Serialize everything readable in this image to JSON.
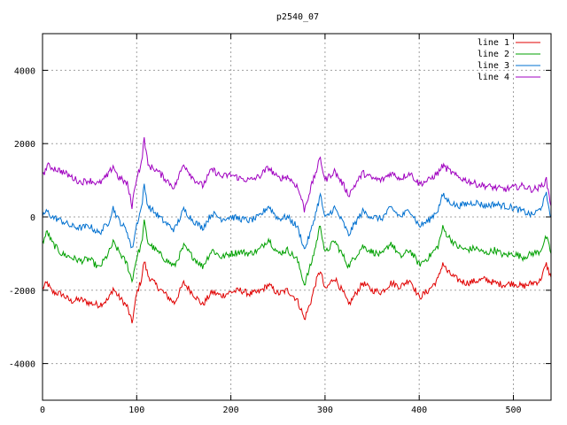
{
  "chart_data": {
    "type": "line",
    "title": "p2540_07",
    "xlim": [
      0,
      540
    ],
    "ylim": [
      -5000,
      5000
    ],
    "xticks": [
      0,
      100,
      200,
      300,
      400,
      500
    ],
    "yticks": [
      -4000,
      -2000,
      0,
      2000,
      4000
    ],
    "grid": true,
    "legend_position": "top-right",
    "series": [
      {
        "name": "line 1",
        "color": "#e00000",
        "keypoints": [
          [
            0,
            -1950
          ],
          [
            5,
            -1800
          ],
          [
            10,
            -2050
          ],
          [
            20,
            -2100
          ],
          [
            30,
            -2300
          ],
          [
            40,
            -2250
          ],
          [
            50,
            -2350
          ],
          [
            60,
            -2400
          ],
          [
            70,
            -2250
          ],
          [
            75,
            -1950
          ],
          [
            80,
            -2150
          ],
          [
            90,
            -2450
          ],
          [
            95,
            -2900
          ],
          [
            100,
            -2100
          ],
          [
            105,
            -1700
          ],
          [
            108,
            -1200
          ],
          [
            112,
            -1600
          ],
          [
            120,
            -1850
          ],
          [
            130,
            -2100
          ],
          [
            140,
            -2350
          ],
          [
            150,
            -1800
          ],
          [
            160,
            -2100
          ],
          [
            170,
            -2400
          ],
          [
            180,
            -2050
          ],
          [
            190,
            -2150
          ],
          [
            200,
            -2050
          ],
          [
            210,
            -2000
          ],
          [
            220,
            -2100
          ],
          [
            230,
            -2050
          ],
          [
            240,
            -1850
          ],
          [
            250,
            -2100
          ],
          [
            260,
            -2000
          ],
          [
            270,
            -2250
          ],
          [
            275,
            -2550
          ],
          [
            278,
            -2800
          ],
          [
            285,
            -2300
          ],
          [
            290,
            -1800
          ],
          [
            295,
            -1450
          ],
          [
            300,
            -2000
          ],
          [
            310,
            -1650
          ],
          [
            320,
            -2100
          ],
          [
            325,
            -2400
          ],
          [
            330,
            -2200
          ],
          [
            340,
            -1800
          ],
          [
            350,
            -2000
          ],
          [
            360,
            -2050
          ],
          [
            370,
            -1800
          ],
          [
            380,
            -1900
          ],
          [
            390,
            -1700
          ],
          [
            400,
            -2200
          ],
          [
            410,
            -2000
          ],
          [
            420,
            -1700
          ],
          [
            425,
            -1250
          ],
          [
            430,
            -1500
          ],
          [
            440,
            -1700
          ],
          [
            450,
            -1800
          ],
          [
            460,
            -1750
          ],
          [
            470,
            -1700
          ],
          [
            480,
            -1800
          ],
          [
            490,
            -1850
          ],
          [
            500,
            -1800
          ],
          [
            510,
            -1900
          ],
          [
            520,
            -1800
          ],
          [
            528,
            -1750
          ],
          [
            535,
            -1300
          ],
          [
            540,
            -1650
          ]
        ]
      },
      {
        "name": "line 2",
        "color": "#00a000",
        "keypoints": [
          [
            0,
            -700
          ],
          [
            5,
            -400
          ],
          [
            10,
            -700
          ],
          [
            20,
            -1000
          ],
          [
            30,
            -1100
          ],
          [
            40,
            -1200
          ],
          [
            50,
            -1150
          ],
          [
            60,
            -1400
          ],
          [
            70,
            -1000
          ],
          [
            75,
            -700
          ],
          [
            80,
            -900
          ],
          [
            90,
            -1300
          ],
          [
            95,
            -1750
          ],
          [
            100,
            -1100
          ],
          [
            105,
            -750
          ],
          [
            108,
            -150
          ],
          [
            112,
            -700
          ],
          [
            120,
            -900
          ],
          [
            130,
            -1150
          ],
          [
            140,
            -1350
          ],
          [
            150,
            -800
          ],
          [
            160,
            -1100
          ],
          [
            170,
            -1350
          ],
          [
            180,
            -900
          ],
          [
            190,
            -1100
          ],
          [
            200,
            -1000
          ],
          [
            210,
            -950
          ],
          [
            220,
            -1000
          ],
          [
            230,
            -900
          ],
          [
            240,
            -600
          ],
          [
            250,
            -1000
          ],
          [
            260,
            -900
          ],
          [
            270,
            -1150
          ],
          [
            275,
            -1550
          ],
          [
            278,
            -1850
          ],
          [
            285,
            -1300
          ],
          [
            290,
            -800
          ],
          [
            295,
            -200
          ],
          [
            300,
            -1000
          ],
          [
            310,
            -650
          ],
          [
            320,
            -1100
          ],
          [
            325,
            -1350
          ],
          [
            330,
            -1150
          ],
          [
            340,
            -800
          ],
          [
            350,
            -950
          ],
          [
            360,
            -1050
          ],
          [
            370,
            -700
          ],
          [
            380,
            -1100
          ],
          [
            390,
            -900
          ],
          [
            400,
            -1300
          ],
          [
            410,
            -1100
          ],
          [
            420,
            -800
          ],
          [
            425,
            -300
          ],
          [
            430,
            -500
          ],
          [
            440,
            -800
          ],
          [
            450,
            -900
          ],
          [
            460,
            -850
          ],
          [
            470,
            -1000
          ],
          [
            480,
            -900
          ],
          [
            490,
            -1050
          ],
          [
            500,
            -1000
          ],
          [
            510,
            -1100
          ],
          [
            520,
            -1000
          ],
          [
            528,
            -950
          ],
          [
            535,
            -550
          ],
          [
            540,
            -1000
          ]
        ]
      },
      {
        "name": "line 3",
        "color": "#0070d0",
        "keypoints": [
          [
            0,
            50
          ],
          [
            5,
            150
          ],
          [
            10,
            0
          ],
          [
            20,
            -100
          ],
          [
            30,
            -250
          ],
          [
            40,
            -300
          ],
          [
            50,
            -250
          ],
          [
            60,
            -450
          ],
          [
            70,
            -150
          ],
          [
            75,
            250
          ],
          [
            80,
            -50
          ],
          [
            90,
            -400
          ],
          [
            95,
            -900
          ],
          [
            100,
            -200
          ],
          [
            105,
            250
          ],
          [
            108,
            850
          ],
          [
            112,
            300
          ],
          [
            120,
            100
          ],
          [
            130,
            -150
          ],
          [
            140,
            -350
          ],
          [
            150,
            200
          ],
          [
            160,
            -100
          ],
          [
            170,
            -300
          ],
          [
            180,
            100
          ],
          [
            190,
            -50
          ],
          [
            200,
            0
          ],
          [
            210,
            -50
          ],
          [
            220,
            -100
          ],
          [
            230,
            0
          ],
          [
            240,
            300
          ],
          [
            250,
            -50
          ],
          [
            260,
            0
          ],
          [
            270,
            -250
          ],
          [
            275,
            -600
          ],
          [
            278,
            -900
          ],
          [
            285,
            -400
          ],
          [
            290,
            100
          ],
          [
            295,
            600
          ],
          [
            300,
            -50
          ],
          [
            310,
            250
          ],
          [
            320,
            -200
          ],
          [
            325,
            -500
          ],
          [
            330,
            -250
          ],
          [
            340,
            150
          ],
          [
            350,
            0
          ],
          [
            360,
            -50
          ],
          [
            370,
            250
          ],
          [
            380,
            0
          ],
          [
            390,
            200
          ],
          [
            400,
            -250
          ],
          [
            410,
            -100
          ],
          [
            420,
            200
          ],
          [
            425,
            600
          ],
          [
            430,
            450
          ],
          [
            440,
            300
          ],
          [
            450,
            350
          ],
          [
            460,
            400
          ],
          [
            470,
            300
          ],
          [
            480,
            350
          ],
          [
            490,
            300
          ],
          [
            500,
            250
          ],
          [
            510,
            150
          ],
          [
            520,
            50
          ],
          [
            528,
            200
          ],
          [
            535,
            600
          ],
          [
            540,
            0
          ]
        ]
      },
      {
        "name": "line 4",
        "color": "#a000c0",
        "keypoints": [
          [
            0,
            1100
          ],
          [
            5,
            1400
          ],
          [
            10,
            1350
          ],
          [
            20,
            1250
          ],
          [
            30,
            1100
          ],
          [
            40,
            950
          ],
          [
            50,
            1000
          ],
          [
            60,
            900
          ],
          [
            70,
            1150
          ],
          [
            75,
            1400
          ],
          [
            80,
            1100
          ],
          [
            90,
            900
          ],
          [
            95,
            300
          ],
          [
            100,
            1100
          ],
          [
            105,
            1450
          ],
          [
            108,
            2150
          ],
          [
            112,
            1400
          ],
          [
            120,
            1300
          ],
          [
            130,
            1050
          ],
          [
            140,
            800
          ],
          [
            150,
            1450
          ],
          [
            160,
            1050
          ],
          [
            170,
            850
          ],
          [
            180,
            1300
          ],
          [
            190,
            1100
          ],
          [
            200,
            1150
          ],
          [
            210,
            1050
          ],
          [
            220,
            1000
          ],
          [
            230,
            1100
          ],
          [
            240,
            1350
          ],
          [
            250,
            1050
          ],
          [
            260,
            1100
          ],
          [
            270,
            850
          ],
          [
            275,
            500
          ],
          [
            278,
            200
          ],
          [
            285,
            800
          ],
          [
            290,
            1200
          ],
          [
            295,
            1600
          ],
          [
            300,
            1000
          ],
          [
            310,
            1250
          ],
          [
            320,
            850
          ],
          [
            325,
            600
          ],
          [
            330,
            800
          ],
          [
            340,
            1200
          ],
          [
            350,
            1050
          ],
          [
            360,
            1000
          ],
          [
            370,
            1200
          ],
          [
            380,
            1050
          ],
          [
            390,
            1200
          ],
          [
            400,
            900
          ],
          [
            410,
            1000
          ],
          [
            420,
            1200
          ],
          [
            425,
            1400
          ],
          [
            430,
            1300
          ],
          [
            440,
            1100
          ],
          [
            450,
            1000
          ],
          [
            460,
            900
          ],
          [
            470,
            850
          ],
          [
            480,
            800
          ],
          [
            490,
            750
          ],
          [
            500,
            800
          ],
          [
            510,
            850
          ],
          [
            520,
            750
          ],
          [
            528,
            800
          ],
          [
            535,
            1000
          ],
          [
            540,
            300
          ]
        ]
      }
    ]
  }
}
